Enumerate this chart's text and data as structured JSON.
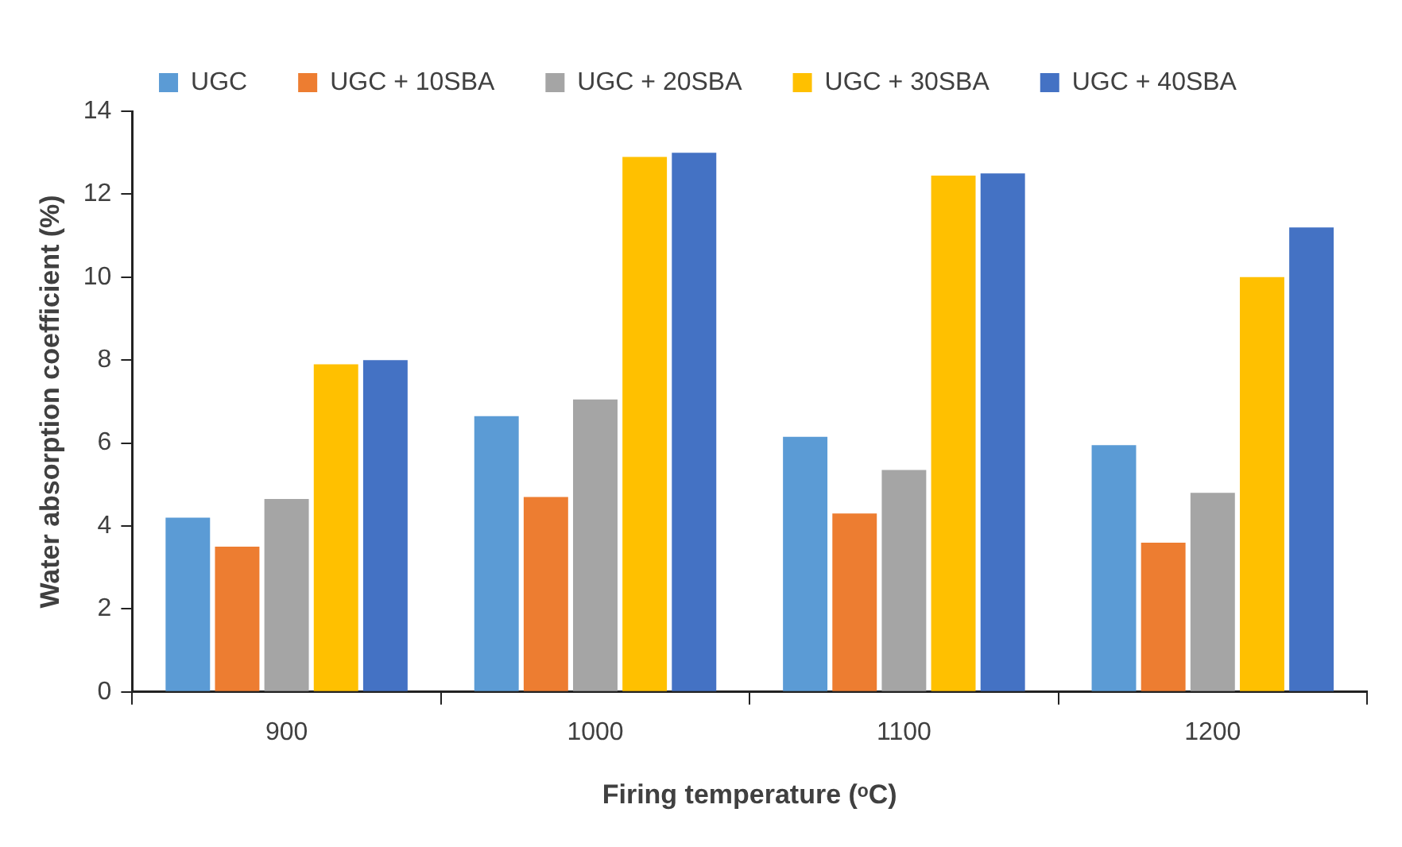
{
  "chart_data": {
    "type": "bar",
    "xlabel": "Firing temperature (ᵒC)",
    "ylabel": "Water absorption coefficient (%)",
    "categories": [
      "900",
      "1000",
      "1100",
      "1200"
    ],
    "series": [
      {
        "name": "UGC",
        "color": "#5b9bd5",
        "values": [
          4.2,
          6.65,
          6.15,
          5.95
        ]
      },
      {
        "name": "UGC + 10SBA",
        "color": "#ed7d31",
        "values": [
          3.5,
          4.7,
          4.3,
          3.6
        ]
      },
      {
        "name": "UGC + 20SBA",
        "color": "#a5a5a5",
        "values": [
          4.65,
          7.05,
          5.35,
          4.8
        ]
      },
      {
        "name": "UGC + 30SBA",
        "color": "#ffc000",
        "values": [
          7.9,
          12.9,
          12.45,
          10.0
        ]
      },
      {
        "name": "UGC + 40SBA",
        "color": "#4472c4",
        "values": [
          8.0,
          13.0,
          12.5,
          11.2
        ]
      }
    ],
    "ylim": [
      0,
      14
    ],
    "yticks": [
      0,
      2,
      4,
      6,
      8,
      10,
      12,
      14
    ],
    "grid": false,
    "legend": "top"
  }
}
